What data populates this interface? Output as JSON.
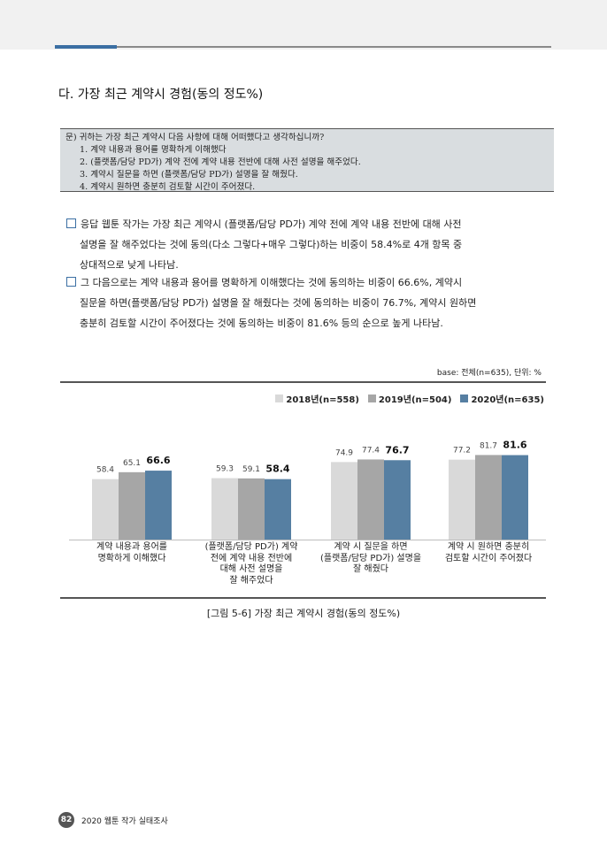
{
  "section_title": "다. 가장 최근 계약시 경험(동의 정도%)",
  "question": {
    "prompt": "문) 귀하는 가장 최근 계약시 다음 사항에 대해 어떠했다고 생각하십니까?",
    "items": [
      "1. 계약 내용과 용어를 명확하게 이해했다",
      "2. (플랫폼/담당 PD가) 계약 전에 계약 내용 전반에 대해 사전 설명을 해주었다.",
      "3. 계약시 질문을 하면 (플랫폼/담당 PD가) 설명을 잘 해줬다.",
      "4. 계약시 원하면 충분히 검토할 시간이 주어졌다."
    ]
  },
  "paragraphs": [
    {
      "lines": [
        "응답 웹툰 작가는 가장 최근 계약시 (플랫폼/담당 PD가) 계약 전에 계약 내용 전반에 대해 사전",
        "설명을 잘 해주었다는 것에 동의(다소 그렇다+매우 그렇다)하는 비중이 58.4%로 4개 항목 중",
        "상대적으로 낮게 나타남."
      ]
    },
    {
      "lines": [
        "그 다음으로는 계약 내용과 용어를 명확하게 이해했다는 것에 동의하는 비중이 66.6%, 계약시",
        "질문을 하면(플랫폼/담당 PD가) 설명을 잘 해줬다는 것에 동의하는 비중이 76.7%, 계약시 원하면",
        "충분히 검토할 시간이 주어졌다는 것에 동의하는 비중이 81.6% 등의 순으로 높게 나타남."
      ]
    }
  ],
  "base_note": "base: 전체(n=635), 단위: %",
  "figure_caption": "[그림 5-6] 가장 최근 계약시 경험(동의 정도%)",
  "footer": {
    "page_number": "82",
    "publication": "2020 웹툰 작가 실태조사"
  },
  "colors": {
    "s2018": "#d9d9d9",
    "s2019": "#a6a6a6",
    "s2020": "#567fa2",
    "accent": "#3b6fa3"
  },
  "chart_data": {
    "type": "bar",
    "categories": [
      "계약 내용과 용어를\n명확하게 이해했다",
      "(플랫폼/담당 PD가) 계약\n전에 계약 내용 전반에\n대해 사전 설명을\n잘 해주었다",
      "계약 시 질문을 하면\n(플랫폼/담당 PD가) 설명을\n잘 해줬다",
      "계약 시 원하면 충분히\n검토할 시간이 주어졌다"
    ],
    "series": [
      {
        "name": "2018년(n=558)",
        "values": [
          58.4,
          59.3,
          74.9,
          77.2
        ],
        "labels": [
          "58.4",
          "59.3",
          "74.9",
          "77.2"
        ]
      },
      {
        "name": "2019년(n=504)",
        "values": [
          65.1,
          59.1,
          77.4,
          81.7
        ],
        "labels": [
          "65.1",
          "59.1",
          "77.4",
          "81.7"
        ]
      },
      {
        "name": "2020년(n=635)",
        "values": [
          66.6,
          58.4,
          76.7,
          81.6
        ],
        "labels": [
          "66.6",
          "58.4",
          "76.7",
          "81.6"
        ]
      }
    ],
    "ylim": [
      0,
      100
    ],
    "grid": false,
    "legend_position": "top-right"
  }
}
